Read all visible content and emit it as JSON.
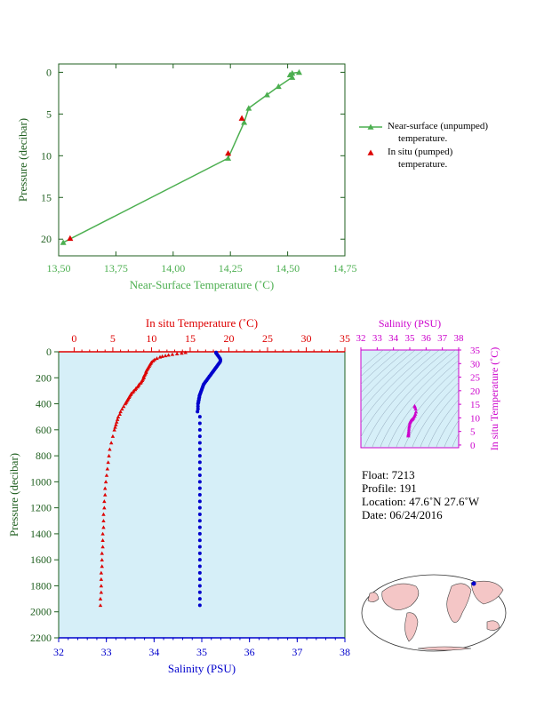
{
  "colors": {
    "green": "#4caf50",
    "red": "#dd0000",
    "blue": "#0000cc",
    "magenta": "#cc00cc",
    "dark_green": "#1f5f1f",
    "plot_bg": "#d6eff8"
  },
  "chart_data": [
    {
      "type": "line",
      "xlabel": "Near-Surface Temperature (˚C)",
      "ylabel": "Pressure (decibar)",
      "xlim": [
        13.5,
        14.75
      ],
      "ylim": [
        22,
        -1
      ],
      "xticks": [
        "13.50",
        "13.75",
        "14.00",
        "14.25",
        "14.50",
        "14.75"
      ],
      "yticks": [
        0,
        5,
        10,
        15,
        20
      ],
      "legend": "right",
      "series": [
        {
          "name": "Near-surface (unpumped) temperature.",
          "marker": "triangle",
          "color": "#4caf50",
          "x": [
            14.55,
            14.52,
            14.51,
            14.52,
            14.46,
            14.41,
            14.33,
            14.31,
            14.24,
            13.52
          ],
          "y": [
            0.0,
            0.1,
            0.3,
            0.6,
            1.7,
            2.7,
            4.3,
            6.0,
            10.3,
            20.4
          ]
        },
        {
          "name": "In situ (pumped) temperature.",
          "marker": "triangle",
          "color": "#dd0000",
          "x": [
            14.3,
            14.24,
            13.55
          ],
          "y": [
            5.5,
            9.7,
            19.9
          ]
        }
      ]
    },
    {
      "type": "scatter",
      "x_top_label": "In situ Temperature (˚C)",
      "x_bottom_label": "Salinity (PSU)",
      "ylabel": "Pressure (decibar)",
      "temp_xlim": [
        -2,
        35
      ],
      "temp_ticks": [
        0,
        5,
        10,
        15,
        20,
        25,
        30,
        35
      ],
      "sal_xlim": [
        32,
        38
      ],
      "sal_ticks": [
        32,
        33,
        34,
        35,
        36,
        37,
        38
      ],
      "ylim": [
        0,
        2200
      ],
      "yticks": [
        0,
        200,
        400,
        600,
        800,
        1000,
        1200,
        1400,
        1600,
        1800,
        2000,
        2200
      ],
      "temperature": {
        "pressure": [
          5,
          10,
          15,
          20,
          25,
          30,
          35,
          40,
          50,
          60,
          70,
          80,
          90,
          100,
          110,
          120,
          130,
          140,
          150,
          160,
          170,
          180,
          190,
          200,
          210,
          220,
          230,
          240,
          250,
          260,
          270,
          280,
          290,
          300,
          310,
          320,
          330,
          340,
          350,
          360,
          370,
          380,
          390,
          400,
          420,
          440,
          460,
          480,
          500,
          520,
          540,
          560,
          580,
          600,
          650,
          700,
          750,
          800,
          850,
          900,
          950,
          1000,
          1050,
          1100,
          1150,
          1200,
          1250,
          1300,
          1350,
          1400,
          1450,
          1500,
          1550,
          1600,
          1650,
          1700,
          1750,
          1800,
          1850,
          1900,
          1950
        ],
        "values": [
          14.4,
          13.9,
          13.3,
          12.7,
          12.2,
          11.8,
          11.4,
          11.1,
          10.7,
          10.4,
          10.2,
          10.0,
          9.9,
          9.8,
          9.7,
          9.6,
          9.5,
          9.4,
          9.3,
          9.3,
          9.2,
          9.1,
          9.0,
          9.0,
          8.9,
          8.8,
          8.7,
          8.6,
          8.4,
          8.3,
          8.2,
          8.0,
          7.9,
          7.7,
          7.6,
          7.4,
          7.3,
          7.2,
          7.1,
          7.0,
          6.9,
          6.8,
          6.7,
          6.6,
          6.4,
          6.2,
          6.0,
          5.9,
          5.7,
          5.6,
          5.5,
          5.4,
          5.3,
          5.2,
          5.0,
          4.8,
          4.6,
          4.5,
          4.4,
          4.3,
          4.2,
          4.1,
          4.0,
          4.0,
          3.9,
          3.9,
          3.8,
          3.8,
          3.8,
          3.7,
          3.7,
          3.7,
          3.6,
          3.6,
          3.6,
          3.5,
          3.5,
          3.5,
          3.5,
          3.4,
          3.4
        ]
      },
      "salinity": {
        "pressure": [
          5,
          10,
          20,
          30,
          40,
          50,
          60,
          70,
          80,
          90,
          100,
          110,
          120,
          130,
          140,
          150,
          160,
          170,
          180,
          190,
          200,
          210,
          220,
          230,
          240,
          250,
          260,
          270,
          280,
          290,
          300,
          310,
          320,
          330,
          340,
          350,
          360,
          370,
          380,
          390,
          400,
          420,
          440,
          460,
          500,
          550,
          600,
          650,
          700,
          750,
          800,
          850,
          900,
          950,
          1000,
          1050,
          1100,
          1150,
          1200,
          1250,
          1300,
          1350,
          1400,
          1450,
          1500,
          1550,
          1600,
          1650,
          1700,
          1750,
          1800,
          1850,
          1900,
          1950
        ],
        "values": [
          35.3,
          35.3,
          35.32,
          35.34,
          35.36,
          35.38,
          35.39,
          35.39,
          35.38,
          35.36,
          35.34,
          35.32,
          35.3,
          35.28,
          35.26,
          35.24,
          35.22,
          35.2,
          35.18,
          35.16,
          35.14,
          35.12,
          35.1,
          35.08,
          35.06,
          35.04,
          35.03,
          35.02,
          35.01,
          35.0,
          34.99,
          34.98,
          34.97,
          34.96,
          34.95,
          34.95,
          34.94,
          34.94,
          34.93,
          34.93,
          34.92,
          34.92,
          34.92,
          34.91,
          34.96,
          34.96,
          34.96,
          34.96,
          34.96,
          34.96,
          34.96,
          34.96,
          34.96,
          34.96,
          34.96,
          34.96,
          34.96,
          34.96,
          34.96,
          34.96,
          34.96,
          34.96,
          34.96,
          34.96,
          34.96,
          34.96,
          34.96,
          34.96,
          34.96,
          34.96,
          34.96,
          34.96,
          34.96,
          34.96
        ]
      }
    },
    {
      "type": "scatter",
      "xlabel": "Salinity (PSU)",
      "ylabel": "In situ Temperature (˚C)",
      "xlim": [
        32,
        38
      ],
      "ylim": [
        -1,
        35
      ],
      "xticks": [
        32,
        33,
        34,
        35,
        36,
        37,
        38
      ],
      "yticks": [
        0,
        5,
        10,
        15,
        20,
        25,
        30,
        35
      ],
      "x": [
        34.91,
        34.91,
        34.92,
        34.93,
        34.94,
        34.95,
        34.96,
        34.98,
        35.0,
        35.02,
        35.05,
        35.08,
        35.12,
        35.16,
        35.2,
        35.24,
        35.3,
        35.34,
        35.38,
        35.36,
        35.32,
        35.3
      ],
      "y": [
        3.4,
        3.7,
        4.0,
        4.5,
        5.2,
        5.9,
        6.6,
        7.2,
        7.9,
        8.4,
        8.8,
        9.1,
        9.3,
        9.5,
        9.8,
        10.2,
        10.7,
        11.4,
        12.2,
        13.3,
        14.0,
        14.4
      ]
    }
  ],
  "legend": {
    "item1_line1": "Near-surface (unpumped)",
    "item1_line2": "temperature.",
    "item2_line1": "In situ (pumped)",
    "item2_line2": "temperature."
  },
  "float_info": {
    "float": "Float:  7213",
    "profile": "Profile:  191",
    "location": "Location:  47.6˚N  27.6˚W",
    "date": "Date:  06/24/2016"
  },
  "map": {
    "marker_color": "#0000cc",
    "land_color": "#f4c6c6"
  }
}
